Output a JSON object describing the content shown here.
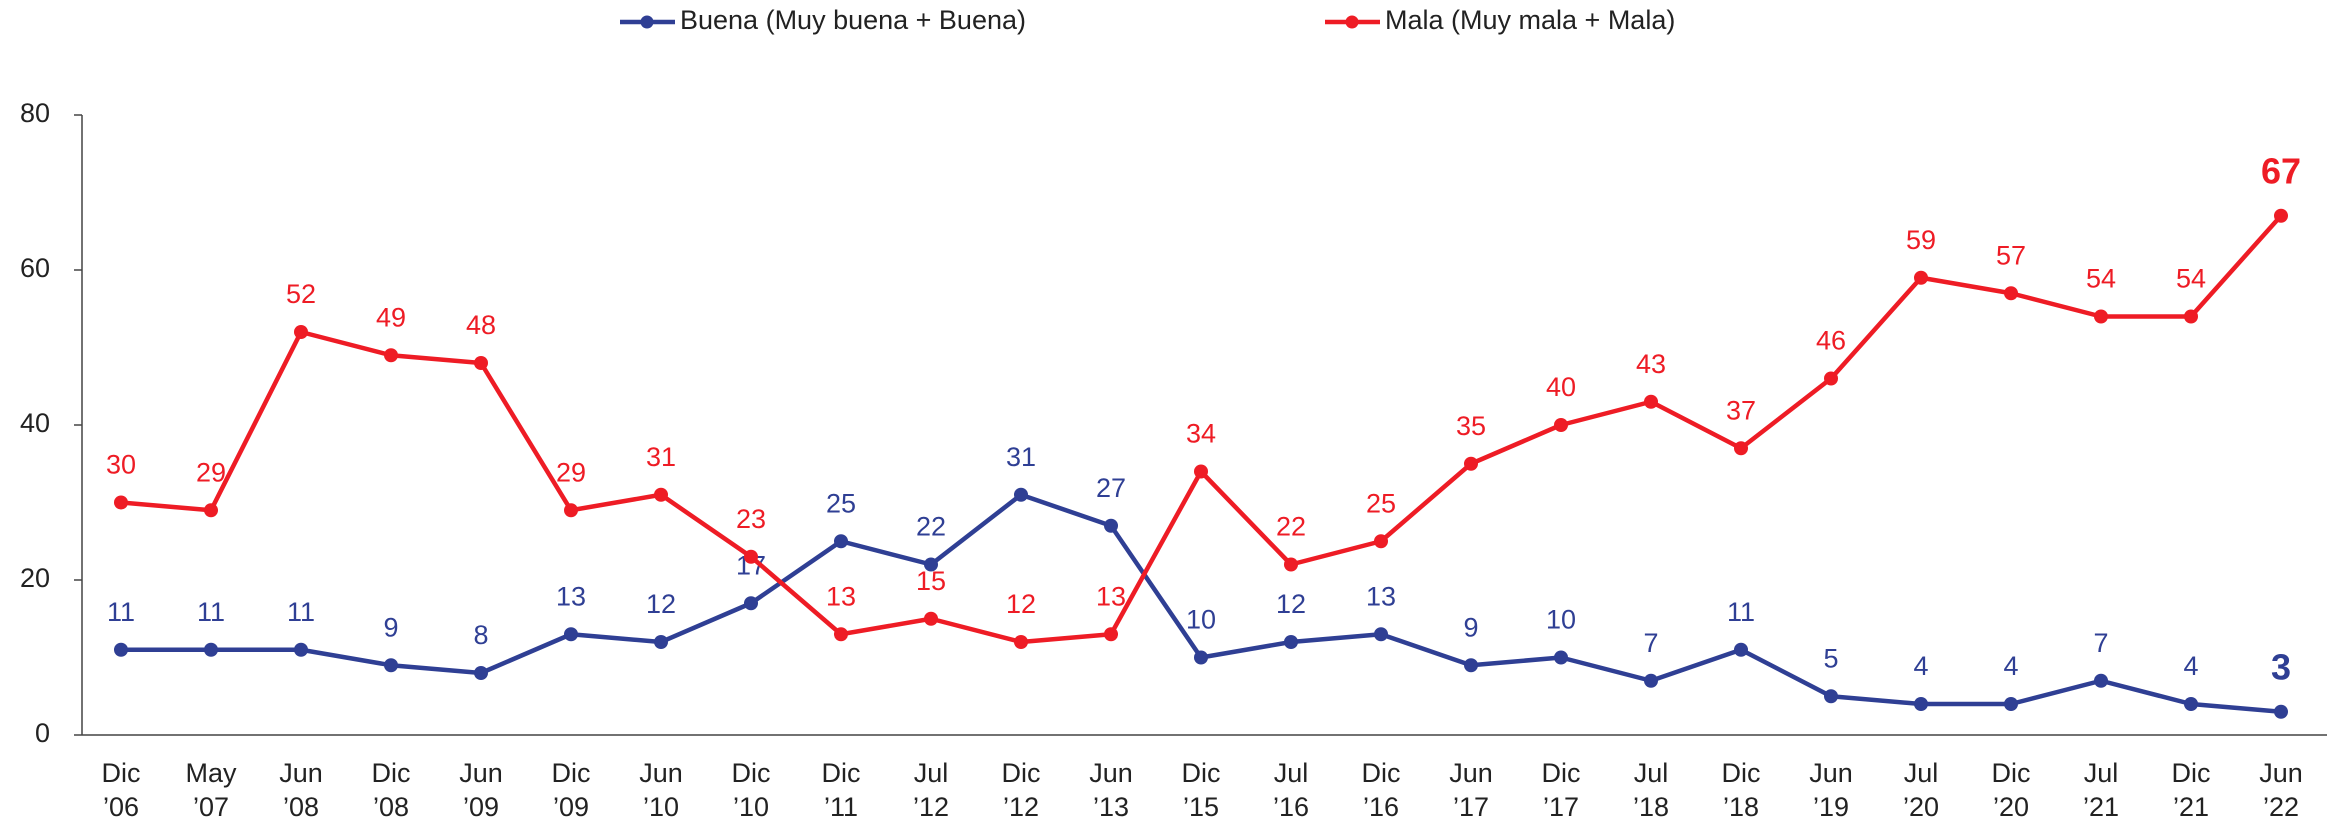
{
  "chart_data": {
    "type": "line",
    "categories": [
      "Dic ’06",
      "May ’07",
      "Jun ’08",
      "Dic ’08",
      "Jun ’09",
      "Dic ’09",
      "Jun ’10",
      "Dic ’10",
      "Dic ’11",
      "Jul ’12",
      "Dic ’12",
      "Jun ’13",
      "Dic ’15",
      "Jul ’16",
      "Dic ’16",
      "Jun ’17",
      "Dic ’17",
      "Jul ’18",
      "Dic ’18",
      "Jun ’19",
      "Jul ’20",
      "Dic ’20",
      "Jul ’21",
      "Dic ’21",
      "Jun ’22"
    ],
    "series": [
      {
        "name": "Buena (Muy buena + Buena)",
        "color": "#2f3f94",
        "values": [
          11,
          11,
          11,
          9,
          8,
          13,
          12,
          17,
          25,
          22,
          31,
          27,
          10,
          12,
          13,
          9,
          10,
          7,
          11,
          5,
          4,
          4,
          7,
          4,
          3
        ]
      },
      {
        "name": "Mala (Muy mala + Mala)",
        "color": "#ee1c25",
        "values": [
          30,
          29,
          52,
          49,
          48,
          29,
          31,
          23,
          13,
          15,
          12,
          13,
          34,
          22,
          25,
          35,
          40,
          43,
          37,
          46,
          59,
          57,
          54,
          54,
          67
        ]
      }
    ],
    "ylim": [
      0,
      80
    ],
    "yticks": [
      0,
      20,
      40,
      60,
      80
    ],
    "legend": "top"
  }
}
